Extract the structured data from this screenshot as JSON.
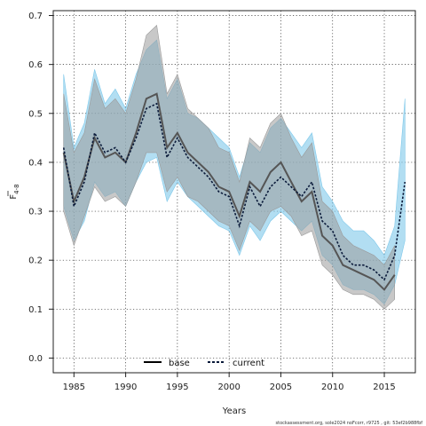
{
  "chart_data": {
    "type": "line",
    "xlabel": "Years",
    "ylabel_main": "F",
    "ylabel_sub": "4-8",
    "xlim": [
      1983,
      2018
    ],
    "ylim": [
      -0.03,
      0.71
    ],
    "xticks": [
      1985,
      1990,
      1995,
      2000,
      2005,
      2010,
      2015
    ],
    "yticks": [
      0.0,
      0.1,
      0.2,
      0.3,
      0.4,
      0.5,
      0.6,
      0.7
    ],
    "xtick_labels": [
      "1985",
      "1990",
      "1995",
      "2000",
      "2005",
      "2010",
      "2015"
    ],
    "ytick_labels": [
      "0.0",
      "0.1",
      "0.2",
      "0.3",
      "0.4",
      "0.5",
      "0.6",
      "0.7"
    ],
    "grid": true,
    "legend_position": "bottom-center",
    "x": [
      1984,
      1985,
      1986,
      1987,
      1988,
      1989,
      1990,
      1991,
      1992,
      1993,
      1994,
      1995,
      1996,
      1997,
      1998,
      1999,
      2000,
      2001,
      2002,
      2003,
      2004,
      2005,
      2006,
      2007,
      2008,
      2009,
      2010,
      2011,
      2012,
      2013,
      2014,
      2015,
      2016,
      2017
    ],
    "series": [
      {
        "name": "base",
        "color": "#555555",
        "band_color": "#9a9a9a",
        "style": "solid",
        "values": [
          0.42,
          0.32,
          0.37,
          0.45,
          0.41,
          0.42,
          0.4,
          0.46,
          0.53,
          0.54,
          0.43,
          0.46,
          0.42,
          0.4,
          0.38,
          0.35,
          0.34,
          0.29,
          0.36,
          0.34,
          0.38,
          0.4,
          0.36,
          0.32,
          0.34,
          0.25,
          0.23,
          0.19,
          0.18,
          0.17,
          0.16,
          0.14,
          0.17,
          null
        ],
        "lower": [
          0.3,
          0.23,
          0.29,
          0.35,
          0.32,
          0.33,
          0.31,
          0.36,
          0.42,
          0.42,
          0.34,
          0.37,
          0.33,
          0.32,
          0.3,
          0.28,
          0.27,
          0.22,
          0.28,
          0.26,
          0.3,
          0.31,
          0.29,
          0.25,
          0.26,
          0.19,
          0.17,
          0.14,
          0.13,
          0.13,
          0.12,
          0.1,
          0.12,
          null
        ],
        "upper": [
          0.54,
          0.42,
          0.46,
          0.57,
          0.51,
          0.53,
          0.5,
          0.57,
          0.66,
          0.68,
          0.54,
          0.58,
          0.51,
          0.49,
          0.47,
          0.43,
          0.42,
          0.36,
          0.45,
          0.43,
          0.48,
          0.5,
          0.45,
          0.41,
          0.44,
          0.32,
          0.3,
          0.25,
          0.23,
          0.22,
          0.21,
          0.19,
          0.23,
          null
        ]
      },
      {
        "name": "current",
        "color": "#0a1a3a",
        "band_color": "#7ec8ea",
        "style": "dashed",
        "values": [
          0.43,
          0.31,
          0.36,
          0.46,
          0.42,
          0.43,
          0.4,
          0.45,
          0.51,
          0.52,
          0.41,
          0.45,
          0.41,
          0.39,
          0.37,
          0.34,
          0.33,
          0.27,
          0.35,
          0.31,
          0.35,
          0.37,
          0.35,
          0.33,
          0.36,
          0.28,
          0.26,
          0.21,
          0.19,
          0.19,
          0.18,
          0.16,
          0.21,
          0.36
        ],
        "lower": [
          0.31,
          0.24,
          0.28,
          0.36,
          0.33,
          0.34,
          0.31,
          0.36,
          0.4,
          0.41,
          0.32,
          0.36,
          0.33,
          0.31,
          0.29,
          0.27,
          0.26,
          0.21,
          0.27,
          0.24,
          0.28,
          0.3,
          0.28,
          0.26,
          0.28,
          0.21,
          0.19,
          0.15,
          0.14,
          0.14,
          0.13,
          0.11,
          0.15,
          0.24
        ],
        "upper": [
          0.58,
          0.43,
          0.48,
          0.59,
          0.52,
          0.55,
          0.51,
          0.58,
          0.63,
          0.65,
          0.53,
          0.57,
          0.5,
          0.49,
          0.47,
          0.45,
          0.43,
          0.37,
          0.44,
          0.42,
          0.47,
          0.49,
          0.46,
          0.43,
          0.46,
          0.35,
          0.32,
          0.28,
          0.26,
          0.26,
          0.24,
          0.21,
          0.27,
          0.53
        ]
      }
    ]
  },
  "footer": "stockassessment.org, sole2024 noFcorr, r9725 , git: 53ef2b988fbf"
}
